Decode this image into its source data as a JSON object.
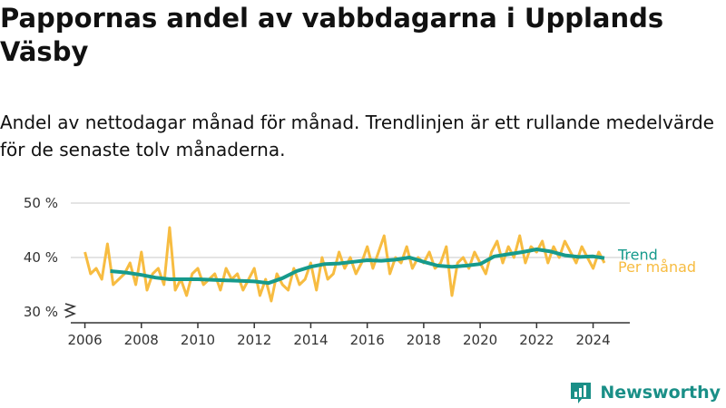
{
  "title": "Pappornas andel av vabbdagarna i Upplands Väsby",
  "subtitle": "Andel av nettodagar månad för månad. Trendlinjen är ett rullande medelvärde för de senaste tolv månaderna.",
  "brand": {
    "name": "Newsworthy",
    "color": "#1a8f87",
    "icon": "newsworthy-logo-icon"
  },
  "colors": {
    "monthly": "#f7bc41",
    "trend": "#169a8c",
    "grid": "#dcdcdc",
    "axis": "#333333"
  },
  "chart_data": {
    "type": "line",
    "xlabel": "",
    "ylabel": "",
    "xlim": [
      2005.5,
      2025.3
    ],
    "ylim": [
      30,
      50
    ],
    "y_ticks": [
      30,
      40,
      50
    ],
    "y_tick_labels": [
      "30 %",
      "40 %",
      "50 %"
    ],
    "x_ticks": [
      2006,
      2008,
      2010,
      2012,
      2014,
      2016,
      2018,
      2020,
      2022,
      2024
    ],
    "x_tick_labels": [
      "2006",
      "2008",
      "2010",
      "2012",
      "2014",
      "2016",
      "2018",
      "2020",
      "2022",
      "2024"
    ],
    "axis_break": true,
    "grid": true,
    "legend": "direct labels at right end",
    "series": [
      {
        "name": "Per månad",
        "color": "#f7bc41",
        "x": [
          2006.0,
          2006.2,
          2006.4,
          2006.6,
          2006.8,
          2007.0,
          2007.2,
          2007.4,
          2007.6,
          2007.8,
          2008.0,
          2008.2,
          2008.4,
          2008.6,
          2008.8,
          2009.0,
          2009.2,
          2009.4,
          2009.6,
          2009.8,
          2010.0,
          2010.2,
          2010.4,
          2010.6,
          2010.8,
          2011.0,
          2011.2,
          2011.4,
          2011.6,
          2011.8,
          2012.0,
          2012.2,
          2012.4,
          2012.6,
          2012.8,
          2013.0,
          2013.2,
          2013.4,
          2013.6,
          2013.8,
          2014.0,
          2014.2,
          2014.4,
          2014.6,
          2014.8,
          2015.0,
          2015.2,
          2015.4,
          2015.6,
          2015.8,
          2016.0,
          2016.2,
          2016.4,
          2016.6,
          2016.8,
          2017.0,
          2017.2,
          2017.4,
          2017.6,
          2017.8,
          2018.0,
          2018.2,
          2018.4,
          2018.6,
          2018.8,
          2019.0,
          2019.2,
          2019.4,
          2019.6,
          2019.8,
          2020.0,
          2020.2,
          2020.4,
          2020.6,
          2020.8,
          2021.0,
          2021.2,
          2021.4,
          2021.6,
          2021.8,
          2022.0,
          2022.2,
          2022.4,
          2022.6,
          2022.8,
          2023.0,
          2023.2,
          2023.4,
          2023.6,
          2023.8,
          2024.0,
          2024.2,
          2024.4
        ],
        "y": [
          41,
          37,
          38,
          36,
          42.5,
          35,
          36,
          37,
          39,
          35,
          41,
          34,
          37,
          38,
          35,
          45.5,
          34,
          36,
          33,
          37,
          38,
          35,
          36,
          37,
          34,
          38,
          36,
          37,
          34,
          36,
          38,
          33,
          36,
          32,
          37,
          35,
          34,
          38,
          35,
          36,
          39,
          34,
          40,
          36,
          37,
          41,
          38,
          40,
          37,
          39,
          42,
          38,
          41,
          44,
          37,
          40,
          39,
          42,
          38,
          40,
          39,
          41,
          38,
          39,
          42,
          33,
          39,
          40,
          38,
          41,
          39,
          37,
          41,
          43,
          39,
          42,
          40,
          44,
          39,
          42,
          41,
          43,
          39,
          42,
          40,
          43,
          41,
          39,
          42,
          40,
          38,
          41,
          39
        ]
      },
      {
        "name": "Trend",
        "color": "#169a8c",
        "x": [
          2006.9,
          2007.5,
          2008.0,
          2008.5,
          2009.0,
          2009.5,
          2010.0,
          2010.5,
          2011.0,
          2011.5,
          2012.0,
          2012.5,
          2013.0,
          2013.5,
          2014.0,
          2014.5,
          2015.0,
          2015.5,
          2016.0,
          2016.5,
          2017.0,
          2017.5,
          2018.0,
          2018.5,
          2019.0,
          2019.5,
          2020.0,
          2020.5,
          2021.0,
          2021.5,
          2022.0,
          2022.5,
          2023.0,
          2023.5,
          2024.0,
          2024.4
        ],
        "y": [
          37.5,
          37.2,
          36.8,
          36.3,
          36.0,
          36.0,
          36.0,
          35.9,
          35.8,
          35.7,
          35.6,
          35.3,
          36.2,
          37.5,
          38.3,
          38.8,
          38.9,
          39.2,
          39.5,
          39.4,
          39.6,
          40.0,
          39.2,
          38.5,
          38.3,
          38.5,
          38.8,
          40.2,
          40.6,
          41.0,
          41.5,
          41.1,
          40.4,
          40.1,
          40.2,
          39.9
        ]
      }
    ]
  }
}
